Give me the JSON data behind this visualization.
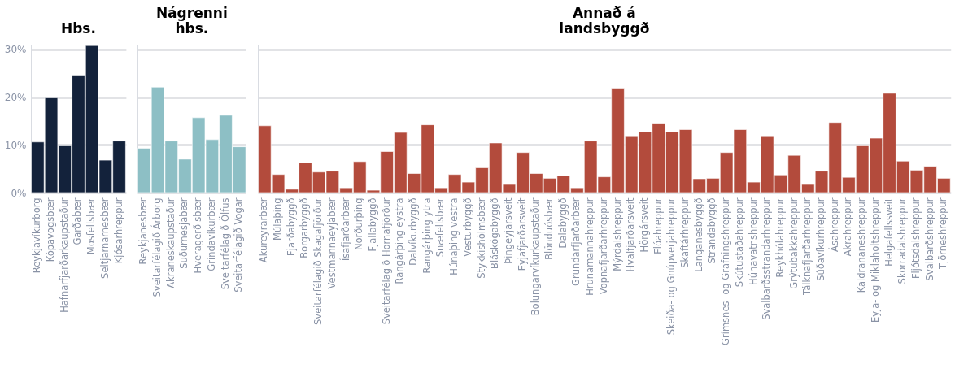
{
  "chart_data": [
    {
      "type": "bar",
      "title": "Hbs.",
      "categories": [
        "Reykjavíkurborg",
        "Kópavogsbær",
        "Hafnarfjarðarkaupstaður",
        "Garðabær",
        "Mosfellsbær",
        "Seltjarnarnesbær",
        "Kjósarhreppur"
      ],
      "values": [
        10.6,
        20.0,
        9.8,
        24.6,
        30.8,
        6.8,
        10.8
      ],
      "color": "#13223b",
      "ylim": [
        0,
        31
      ],
      "yticks": [
        {
          "value": 0,
          "label": "0%"
        },
        {
          "value": 10,
          "label": "10%"
        },
        {
          "value": 20,
          "label": "20%"
        },
        {
          "value": 30,
          "label": "30%"
        }
      ],
      "grid": "y"
    },
    {
      "type": "bar",
      "title": "Nágrenni\nhbs.",
      "categories": [
        "Reykjanesbær",
        "Sveitarfélagið Árborg",
        "Akraneskaupstaður",
        "Suðurnesjabær",
        "Hveragerðisbær",
        "Grindavíkurbær",
        "Sveitarfélagið Ölfus",
        "Sveitarfélagið Vogar"
      ],
      "values": [
        9.3,
        22.1,
        10.8,
        7.0,
        15.7,
        11.1,
        16.2,
        9.6
      ],
      "color": "#8dbfc5",
      "ylim": [
        0,
        31
      ],
      "yticks": [
        {
          "value": 0,
          "label": null
        },
        {
          "value": 10,
          "label": null
        },
        {
          "value": 20,
          "label": null
        },
        {
          "value": 30,
          "label": null
        }
      ],
      "grid": "y",
      "tick_labels": "x"
    },
    {
      "type": "bar",
      "title": "Annað á\nlandsbyggð",
      "categories": [
        "Akureyrarbær",
        "Múlaþing",
        "Fjarðabyggð",
        "Borgarbyggð",
        "Sveitarfélagið Skagafjörður",
        "Vestmannaeyjabær",
        "Ísafjarðarbær",
        "Norðurþing",
        "Fjallabyggð",
        "Sveitarfélagið Hornafjörður",
        "Rangárþing eystra",
        "Dalvíkurbyggð",
        "Rangárþing ytra",
        "Snæfellsbær",
        "Húnaþing vestra",
        "Vesturbyggð",
        "Stykkishólmsbær",
        "Bláskógabyggð",
        "Þingeyjarsveit",
        "Eyjafjarðarsveit",
        "Bolungarvíkurkaupstaður",
        "Blönduósbær",
        "Dalabyggð",
        "Grundarfjarðarbær",
        "Hrunamannahreppur",
        "Vopnafjarðarhreppur",
        "Mýrdalshreppur",
        "Hvalfjarðarsveit",
        "Hörgársveit",
        "Flóahreppur",
        "Skeiða- og Gnúpverjahreppur",
        "Skaftárhreppur",
        "Langanesbyggð",
        "Strandabyggð",
        "Grímsnes- og Grafningshreppur",
        "Skútustaðahreppur",
        "Húnavatnshreppur",
        "Svalbarðsstrandarhreppur",
        "Reykhólahreppur",
        "Grýtubakkahreppur",
        "Tálknafjarðarhreppur",
        "Súðavíkurhreppur",
        "Ásahreppur",
        "Akrahreppur",
        "Kaldrananeshreppur",
        "Eyja- og Miklaholtshreppur",
        "Helgafellssveit",
        "Skorradalshreppur",
        "Fljótsdalshreppur",
        "Svalbarðshreppur",
        "Tjörneshreppur"
      ],
      "values": [
        14.0,
        3.8,
        0.7,
        6.3,
        4.3,
        4.5,
        1.0,
        6.5,
        0.5,
        8.6,
        12.6,
        4.0,
        14.2,
        1.0,
        3.8,
        2.2,
        5.2,
        10.4,
        1.7,
        8.4,
        4.0,
        3.0,
        3.5,
        1.0,
        10.8,
        3.3,
        21.9,
        11.9,
        12.7,
        14.5,
        12.7,
        13.2,
        2.9,
        3.0,
        8.4,
        13.2,
        2.2,
        11.9,
        3.7,
        7.8,
        1.7,
        4.5,
        14.7,
        3.2,
        9.8,
        11.4,
        20.8,
        6.6,
        4.7,
        5.5,
        3.0
      ],
      "color": "#b34b3c",
      "ylim": [
        0,
        31
      ],
      "yticks": [
        {
          "value": 0,
          "label": null
        },
        {
          "value": 10,
          "label": null
        },
        {
          "value": 20,
          "label": null
        },
        {
          "value": 30,
          "label": null
        }
      ],
      "grid": "y",
      "tick_labels": "x"
    }
  ]
}
